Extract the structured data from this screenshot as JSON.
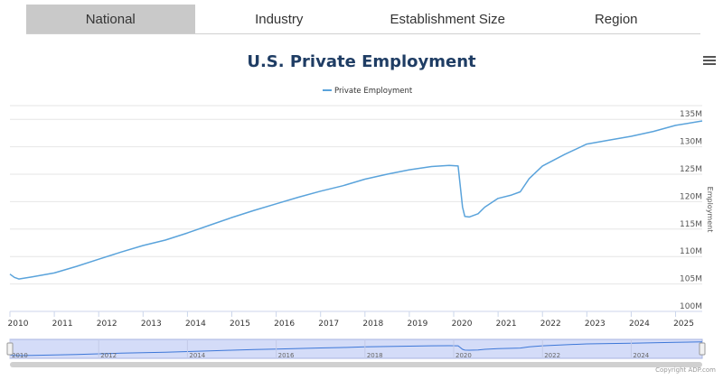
{
  "tabs": [
    {
      "label": "National",
      "active": true
    },
    {
      "label": "Industry",
      "active": false
    },
    {
      "label": "Establishment Size",
      "active": false
    },
    {
      "label": "Region",
      "active": false
    }
  ],
  "menu_icon": "hamburger-menu-icon",
  "copyright": "Copyright ADP.com",
  "colors": {
    "line": "#5aa3db",
    "title": "#1f3d64",
    "navigator_fill": "#d4dcf8",
    "navigator_line": "#3d77d8",
    "grid": "#e6e6e6"
  },
  "chart_data": {
    "type": "line",
    "title": "U.S. Private Employment",
    "ylabel": "Employment",
    "xlabel": "",
    "legend": "top-center",
    "ylim": [
      100,
      137.5
    ],
    "y_ticks": [
      {
        "value": 100,
        "label": "100M"
      },
      {
        "value": 105,
        "label": "105M"
      },
      {
        "value": 110,
        "label": "110M"
      },
      {
        "value": 115,
        "label": "115M"
      },
      {
        "value": 120,
        "label": "120M"
      },
      {
        "value": 125,
        "label": "125M"
      },
      {
        "value": 130,
        "label": "130M"
      },
      {
        "value": 135,
        "label": "135M"
      }
    ],
    "xlim": [
      2010,
      2025.6
    ],
    "x_ticks": [
      "2010",
      "2011",
      "2012",
      "2013",
      "2014",
      "2015",
      "2016",
      "2017",
      "2018",
      "2019",
      "2020",
      "2021",
      "2022",
      "2023",
      "2024",
      "2025"
    ],
    "navigator_ticks": [
      "2010",
      "2012",
      "2014",
      "2016",
      "2018",
      "2020",
      "2022",
      "2024"
    ],
    "series": [
      {
        "name": "Private Employment",
        "units": "millions",
        "x": [
          2010.0,
          2010.1,
          2010.2,
          2010.5,
          2011.0,
          2011.5,
          2012.0,
          2012.5,
          2013.0,
          2013.5,
          2014.0,
          2014.5,
          2015.0,
          2015.5,
          2016.0,
          2016.5,
          2017.0,
          2017.5,
          2018.0,
          2018.5,
          2019.0,
          2019.5,
          2019.9,
          2020.1,
          2020.2,
          2020.25,
          2020.35,
          2020.55,
          2020.7,
          2021.0,
          2021.3,
          2021.5,
          2021.7,
          2022.0,
          2022.5,
          2023.0,
          2023.5,
          2024.0,
          2024.5,
          2025.0,
          2025.6
        ],
        "values": [
          106.8,
          106.2,
          105.9,
          106.3,
          107.0,
          108.2,
          109.5,
          110.8,
          112.0,
          113.0,
          114.3,
          115.7,
          117.1,
          118.4,
          119.6,
          120.8,
          121.9,
          122.9,
          124.1,
          125.0,
          125.8,
          126.4,
          126.6,
          126.5,
          119.0,
          117.3,
          117.2,
          117.8,
          119.0,
          120.6,
          121.2,
          121.8,
          124.2,
          126.5,
          128.6,
          130.5,
          131.2,
          131.9,
          132.8,
          133.9,
          134.7
        ]
      }
    ]
  }
}
